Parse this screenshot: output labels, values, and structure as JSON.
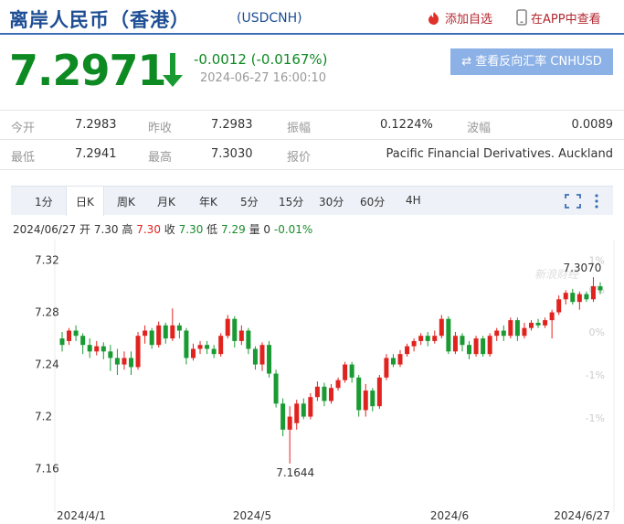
{
  "header": {
    "title": "离岸人民币（香港）",
    "code": "(USDCNH)",
    "add_watch": "添加自选",
    "app_view": "在APP中查看"
  },
  "quote": {
    "price": "7.2971",
    "change": "-0.0012 (-0.0167%)",
    "time": "2024-06-27  16:00:10",
    "reverse_button": "查看反向汇率 CNHUSD"
  },
  "stats": {
    "row1": [
      {
        "label": "今开",
        "value": "7.2983"
      },
      {
        "label": "昨收",
        "value": "7.2983"
      },
      {
        "label": "振幅",
        "value": "0.1224%"
      },
      {
        "label": "波幅",
        "value": "0.0089"
      }
    ],
    "row2": [
      {
        "label": "最低",
        "value": "7.2941"
      },
      {
        "label": "最高",
        "value": "7.3030"
      },
      {
        "label": "报价",
        "value": "Pacific Financial Derivatives. Auckland"
      }
    ]
  },
  "tabs": [
    "1分",
    "日K",
    "周K",
    "月K",
    "年K",
    "5分",
    "15分",
    "30分",
    "60分",
    "4H"
  ],
  "ohlc": {
    "date": "2024/06/27",
    "open_label": "开",
    "open": "7.30",
    "high_label": "高",
    "high": "7.30",
    "close_label": "收",
    "close": "7.30",
    "low_label": "低",
    "low": "7.29",
    "vol_label": "量",
    "vol": "0",
    "pct": "-0.01%"
  },
  "watermark": "新浪财经",
  "chart_data": {
    "type": "candlestick",
    "yticks": [
      "7.32",
      "7.28",
      "7.24",
      "7.2",
      "7.16"
    ],
    "ytick_values": [
      7.32,
      7.28,
      7.24,
      7.2,
      7.16
    ],
    "pct_ticks": [
      "1%",
      "0%",
      "0%",
      "-1%",
      "-1%"
    ],
    "xticks": [
      "2024/4/1",
      "2024/5",
      "2024/6",
      "2024/6/27"
    ],
    "max_label": "7.3070",
    "min_label": "7.1644",
    "ylim": [
      7.152,
      7.326
    ],
    "candles": [
      [
        7.26,
        7.255,
        7.265,
        7.25
      ],
      [
        7.258,
        7.266,
        7.268,
        7.255
      ],
      [
        7.266,
        7.262,
        7.27,
        7.258
      ],
      [
        7.262,
        7.255,
        7.264,
        7.248
      ],
      [
        7.255,
        7.25,
        7.26,
        7.245
      ],
      [
        7.25,
        7.254,
        7.258,
        7.247
      ],
      [
        7.254,
        7.25,
        7.257,
        7.244
      ],
      [
        7.25,
        7.245,
        7.255,
        7.235
      ],
      [
        7.245,
        7.24,
        7.252,
        7.232
      ],
      [
        7.24,
        7.245,
        7.25,
        7.236
      ],
      [
        7.245,
        7.238,
        7.25,
        7.232
      ],
      [
        7.238,
        7.262,
        7.265,
        7.236
      ],
      [
        7.262,
        7.266,
        7.27,
        7.256
      ],
      [
        7.266,
        7.255,
        7.268,
        7.252
      ],
      [
        7.255,
        7.27,
        7.273,
        7.253
      ],
      [
        7.27,
        7.26,
        7.272,
        7.256
      ],
      [
        7.26,
        7.27,
        7.283,
        7.258
      ],
      [
        7.27,
        7.266,
        7.272,
        7.26
      ],
      [
        7.266,
        7.245,
        7.268,
        7.24
      ],
      [
        7.245,
        7.252,
        7.256,
        7.243
      ],
      [
        7.252,
        7.255,
        7.258,
        7.248
      ],
      [
        7.255,
        7.252,
        7.258,
        7.248
      ],
      [
        7.252,
        7.248,
        7.255,
        7.245
      ],
      [
        7.248,
        7.262,
        7.264,
        7.246
      ],
      [
        7.262,
        7.275,
        7.278,
        7.26
      ],
      [
        7.275,
        7.258,
        7.277,
        7.253
      ],
      [
        7.258,
        7.266,
        7.27,
        7.255
      ],
      [
        7.266,
        7.252,
        7.268,
        7.248
      ],
      [
        7.252,
        7.24,
        7.254,
        7.236
      ],
      [
        7.24,
        7.255,
        7.257,
        7.235
      ],
      [
        7.255,
        7.233,
        7.258,
        7.23
      ],
      [
        7.233,
        7.21,
        7.236,
        7.207
      ],
      [
        7.21,
        7.19,
        7.214,
        7.185
      ],
      [
        7.19,
        7.2,
        7.208,
        7.164
      ],
      [
        7.195,
        7.21,
        7.213,
        7.19
      ],
      [
        7.21,
        7.2,
        7.214,
        7.198
      ],
      [
        7.2,
        7.215,
        7.218,
        7.198
      ],
      [
        7.215,
        7.223,
        7.227,
        7.212
      ],
      [
        7.223,
        7.212,
        7.226,
        7.208
      ],
      [
        7.212,
        7.222,
        7.225,
        7.21
      ],
      [
        7.222,
        7.228,
        7.23,
        7.22
      ],
      [
        7.228,
        7.24,
        7.242,
        7.226
      ],
      [
        7.24,
        7.23,
        7.242,
        7.226
      ],
      [
        7.23,
        7.205,
        7.232,
        7.2
      ],
      [
        7.205,
        7.22,
        7.225,
        7.2
      ],
      [
        7.22,
        7.208,
        7.222,
        7.204
      ],
      [
        7.208,
        7.23,
        7.232,
        7.206
      ],
      [
        7.23,
        7.245,
        7.248,
        7.228
      ],
      [
        7.245,
        7.24,
        7.248,
        7.238
      ],
      [
        7.24,
        7.248,
        7.251,
        7.238
      ],
      [
        7.248,
        7.254,
        7.256,
        7.246
      ],
      [
        7.254,
        7.258,
        7.26,
        7.25
      ],
      [
        7.258,
        7.262,
        7.264,
        7.255
      ],
      [
        7.262,
        7.258,
        7.265,
        7.254
      ],
      [
        7.258,
        7.262,
        7.266,
        7.256
      ],
      [
        7.262,
        7.275,
        7.278,
        7.26
      ],
      [
        7.275,
        7.25,
        7.277,
        7.248
      ],
      [
        7.25,
        7.262,
        7.265,
        7.248
      ],
      [
        7.262,
        7.255,
        7.264,
        7.25
      ],
      [
        7.255,
        7.248,
        7.258,
        7.244
      ],
      [
        7.248,
        7.26,
        7.262,
        7.246
      ],
      [
        7.26,
        7.248,
        7.262,
        7.246
      ],
      [
        7.248,
        7.262,
        7.264,
        7.246
      ],
      [
        7.262,
        7.266,
        7.268,
        7.258
      ],
      [
        7.266,
        7.262,
        7.27,
        7.258
      ],
      [
        7.262,
        7.274,
        7.276,
        7.26
      ],
      [
        7.274,
        7.262,
        7.276,
        7.258
      ],
      [
        7.262,
        7.268,
        7.272,
        7.26
      ],
      [
        7.268,
        7.272,
        7.274,
        7.266
      ],
      [
        7.272,
        7.27,
        7.275,
        7.268
      ],
      [
        7.27,
        7.274,
        7.276,
        7.268
      ],
      [
        7.274,
        7.28,
        7.282,
        7.26
      ],
      [
        7.28,
        7.29,
        7.293,
        7.278
      ],
      [
        7.29,
        7.295,
        7.297,
        7.286
      ],
      [
        7.295,
        7.288,
        7.298,
        7.286
      ],
      [
        7.288,
        7.294,
        7.296,
        7.282
      ],
      [
        7.294,
        7.29,
        7.296,
        7.288
      ],
      [
        7.29,
        7.3,
        7.307,
        7.288
      ],
      [
        7.3,
        7.297,
        7.303,
        7.294
      ]
    ],
    "grid": false
  }
}
